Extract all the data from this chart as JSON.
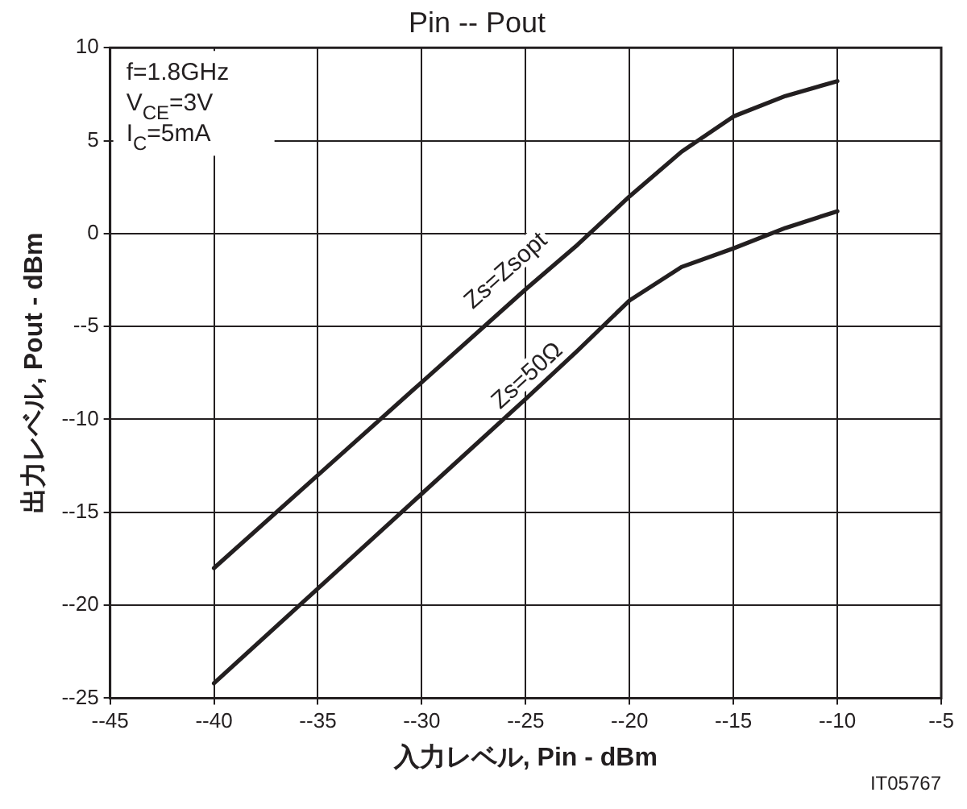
{
  "chart_data": {
    "type": "line",
    "title": "Pin -- Pout",
    "xlabel": "入力レベル, Pin - dBm",
    "ylabel": "出力レベル, Pout - dBm",
    "annotations": [
      "f=1.8GHz",
      "V$_{CE}$=3V",
      "I$_{C}$=5mA",
      "IT05767"
    ],
    "x": [
      -40,
      -35,
      -30,
      -25,
      -22.5,
      -20,
      -17.5,
      -15,
      -12.5,
      -10
    ],
    "series": [
      {
        "name": "Zs=Zsopt",
        "color": "#231f20",
        "values": [
          -18,
          -13,
          -8,
          -3,
          -0.6,
          2,
          4.4,
          6.3,
          7.4,
          8.2
        ]
      },
      {
        "name": "Zs=50Ω",
        "color": "#231f20",
        "values": [
          -24.2,
          -19.1,
          -14,
          -8.9,
          -6.3,
          -3.6,
          -1.8,
          -0.8,
          0.3,
          1.2
        ]
      }
    ],
    "xlim": [
      -45,
      -5
    ],
    "xticks": [
      {
        "value": -45,
        "label": "--45"
      },
      {
        "value": -40,
        "label": "--40"
      },
      {
        "value": -35,
        "label": "--35"
      },
      {
        "value": -30,
        "label": "--30"
      },
      {
        "value": -25,
        "label": "--25"
      },
      {
        "value": -20,
        "label": "--20"
      },
      {
        "value": -15,
        "label": "--15"
      },
      {
        "value": -10,
        "label": "--10"
      },
      {
        "value": -5,
        "label": "--5"
      }
    ],
    "ylim": [
      -25,
      10
    ],
    "yticks": [
      {
        "value": -25,
        "label": "--25"
      },
      {
        "value": -20,
        "label": "--20"
      },
      {
        "value": -15,
        "label": "--15"
      },
      {
        "value": -10,
        "label": "--10"
      },
      {
        "value": -5,
        "label": "--5"
      },
      0,
      5,
      10
    ],
    "grid": true,
    "legend": false,
    "marker": "none",
    "line_style": "solid"
  }
}
